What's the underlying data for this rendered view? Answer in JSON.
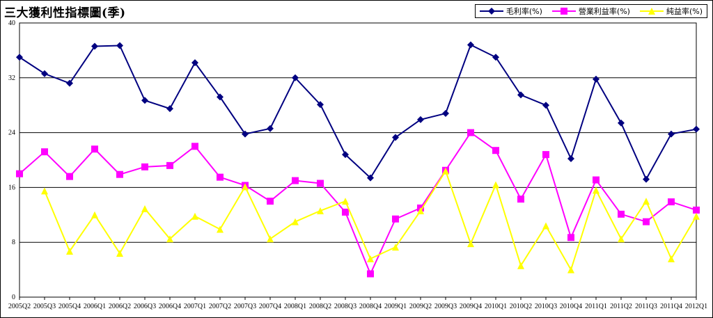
{
  "chart_data": {
    "type": "line",
    "title": "三大獲利性指標圖(季)",
    "categories": [
      "2005Q2",
      "2005Q3",
      "2005Q4",
      "2006Q1",
      "2006Q2",
      "2006Q3",
      "2006Q4",
      "2007Q1",
      "2007Q2",
      "2007Q3",
      "2007Q4",
      "2008Q1",
      "2008Q2",
      "2008Q3",
      "2008Q4",
      "2009Q1",
      "2009Q2",
      "2009Q3",
      "2009Q4",
      "2010Q1",
      "2010Q2",
      "2010Q3",
      "2010Q4",
      "2011Q1",
      "2011Q2",
      "2011Q3",
      "2011Q4",
      "2012Q1"
    ],
    "ylim": [
      0,
      40
    ],
    "yticks": [
      0,
      8,
      16,
      24,
      32,
      40
    ],
    "grid": true,
    "legend_position": "top-right",
    "series": [
      {
        "name": "毛利率(%)",
        "color": "#000080",
        "marker": "diamond",
        "values": [
          35.0,
          32.6,
          31.2,
          36.6,
          36.7,
          28.7,
          27.5,
          34.2,
          29.2,
          23.8,
          24.6,
          32.0,
          28.1,
          20.8,
          17.4,
          23.3,
          25.9,
          26.8,
          36.8,
          35.0,
          29.5,
          28.0,
          20.2,
          31.8,
          25.4,
          17.2,
          23.8,
          24.5
        ]
      },
      {
        "name": "營業利益率(%)",
        "color": "#FF00FF",
        "marker": "square",
        "values": [
          18.0,
          21.2,
          17.6,
          21.6,
          17.9,
          19.0,
          19.2,
          22.0,
          17.5,
          16.3,
          14.0,
          17.0,
          16.6,
          12.4,
          3.4,
          11.4,
          13.0,
          18.5,
          24.0,
          21.4,
          14.3,
          20.8,
          8.7,
          17.1,
          12.1,
          11.0,
          13.9,
          12.7
        ]
      },
      {
        "name": "純益率(%)",
        "color": "#FFFF00",
        "marker": "triangle",
        "values": [
          null,
          15.5,
          6.7,
          12.0,
          6.4,
          12.9,
          8.5,
          11.8,
          9.9,
          16.1,
          8.5,
          11.0,
          12.6,
          14.0,
          5.6,
          7.3,
          12.6,
          18.4,
          7.8,
          16.4,
          4.6,
          10.4,
          4.0,
          15.6,
          8.5,
          14.0,
          5.6,
          11.8
        ]
      }
    ]
  }
}
